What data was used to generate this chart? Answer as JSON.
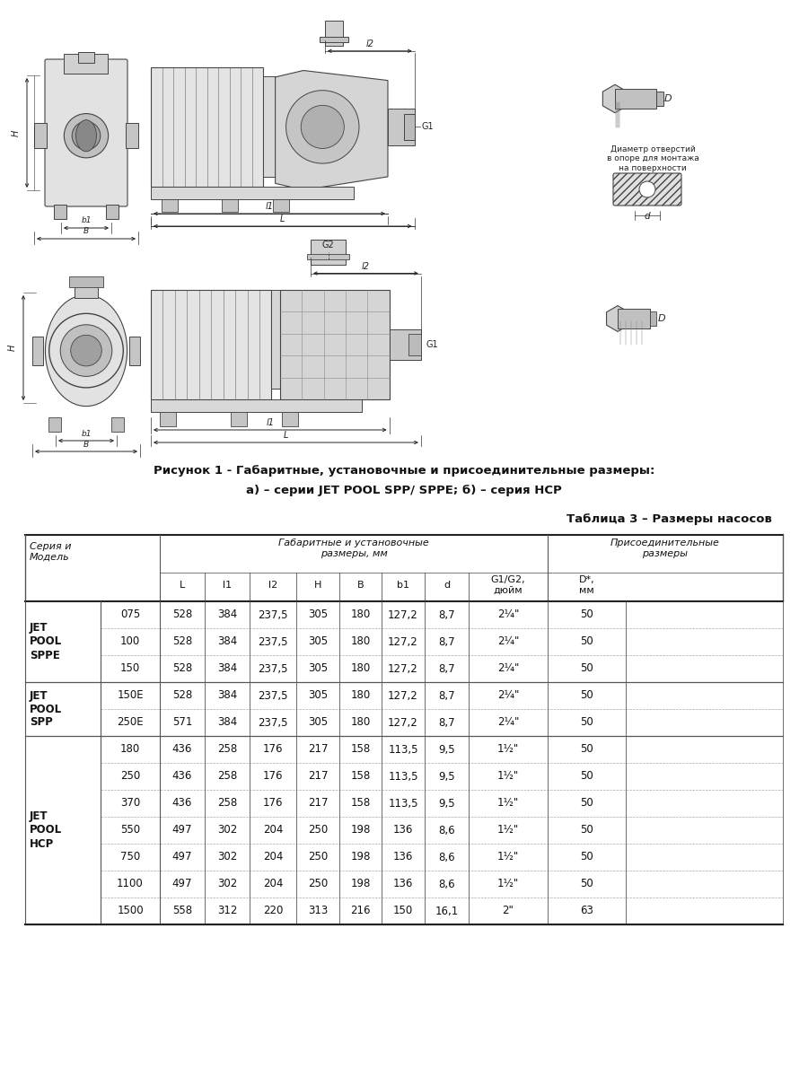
{
  "figure_caption_line1": "Рисунок 1 - Габаритные, установочные и присоединительные размеры:",
  "figure_caption_line2": "а) – серии JET POOL SPP/ SPPE; б) – серия НСР",
  "table_title": "Таблица 3 – Размеры насосов",
  "col_header_group1": "Габаритные и установочные\nразмеры, мм",
  "col_header_group2": "Присоединительные\nразмеры",
  "col_header_series": "Серия и\nМодель",
  "col_headers": [
    "L",
    "l1",
    "l2",
    "H",
    "B",
    "b1",
    "d",
    "G1/G2,\nдюйм",
    "D*,\nмм"
  ],
  "series_groups": [
    {
      "series_name": "JET\nPOOL\nSPPE",
      "models": [
        "075",
        "100",
        "150"
      ],
      "data": [
        [
          528,
          384,
          "237,5",
          305,
          180,
          "127,2",
          "8,7",
          "2¼\"",
          50
        ],
        [
          528,
          384,
          "237,5",
          305,
          180,
          "127,2",
          "8,7",
          "2¼\"",
          50
        ],
        [
          528,
          384,
          "237,5",
          305,
          180,
          "127,2",
          "8,7",
          "2¼\"",
          50
        ]
      ]
    },
    {
      "series_name": "JET\nPOOL\nSPP",
      "models": [
        "150E",
        "250E"
      ],
      "data": [
        [
          528,
          384,
          "237,5",
          305,
          180,
          "127,2",
          "8,7",
          "2¼\"",
          50
        ],
        [
          571,
          384,
          "237,5",
          305,
          180,
          "127,2",
          "8,7",
          "2¼\"",
          50
        ]
      ]
    },
    {
      "series_name": "JET\nPOOL\nHCP",
      "models": [
        "180",
        "250",
        "370",
        "550",
        "750",
        "1100",
        "1500"
      ],
      "data": [
        [
          436,
          258,
          176,
          217,
          158,
          "113,5",
          "9,5",
          "1½\"",
          50
        ],
        [
          436,
          258,
          176,
          217,
          158,
          "113,5",
          "9,5",
          "1½\"",
          50
        ],
        [
          436,
          258,
          176,
          217,
          158,
          "113,5",
          "9,5",
          "1½\"",
          50
        ],
        [
          497,
          302,
          204,
          250,
          198,
          136,
          "8,6",
          "1½\"",
          50
        ],
        [
          497,
          302,
          204,
          250,
          198,
          136,
          "8,6",
          "1½\"",
          50
        ],
        [
          497,
          302,
          204,
          250,
          198,
          136,
          "8,6",
          "1½\"",
          50
        ],
        [
          558,
          312,
          220,
          313,
          216,
          150,
          "16,1",
          "2\"",
          63
        ]
      ]
    }
  ],
  "bg_color": "#ffffff"
}
